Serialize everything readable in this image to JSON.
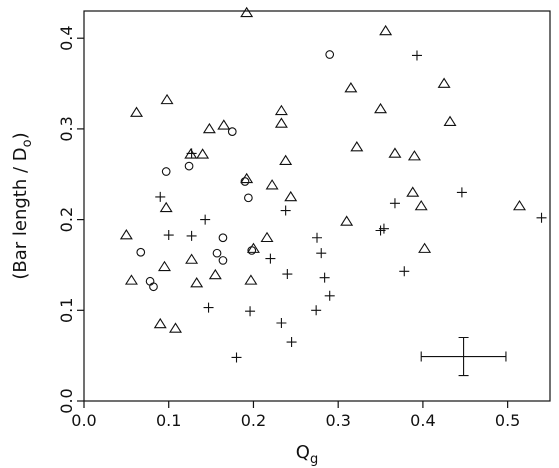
{
  "chart_data": {
    "type": "scatter",
    "xlabel": {
      "main": "Q",
      "sub": "g"
    },
    "ylabel": {
      "prefix": "(Bar length / ",
      "main": "D",
      "sub": "o",
      "suffix": ")"
    },
    "xlim": [
      0.0,
      0.55
    ],
    "ylim": [
      0.0,
      0.43
    ],
    "x_ticks": [
      "0.0",
      "0.1",
      "0.2",
      "0.3",
      "0.4",
      "0.5"
    ],
    "x_tick_values": [
      0.0,
      0.1,
      0.2,
      0.3,
      0.4,
      0.5
    ],
    "y_ticks": [
      "0.0",
      "0.1",
      "0.2",
      "0.3",
      "0.4"
    ],
    "y_tick_values": [
      0.0,
      0.1,
      0.2,
      0.3,
      0.4
    ],
    "grid": false,
    "series": [
      {
        "marker": "triangle",
        "points": [
          [
            0.062,
            0.318
          ],
          [
            0.098,
            0.332
          ],
          [
            0.192,
            0.428
          ],
          [
            0.356,
            0.408
          ],
          [
            0.148,
            0.3
          ],
          [
            0.165,
            0.304
          ],
          [
            0.233,
            0.32
          ],
          [
            0.233,
            0.306
          ],
          [
            0.315,
            0.345
          ],
          [
            0.35,
            0.322
          ],
          [
            0.425,
            0.35
          ],
          [
            0.432,
            0.308
          ],
          [
            0.126,
            0.272
          ],
          [
            0.14,
            0.272
          ],
          [
            0.238,
            0.265
          ],
          [
            0.322,
            0.28
          ],
          [
            0.367,
            0.273
          ],
          [
            0.39,
            0.27
          ],
          [
            0.192,
            0.245
          ],
          [
            0.222,
            0.238
          ],
          [
            0.244,
            0.225
          ],
          [
            0.388,
            0.23
          ],
          [
            0.398,
            0.215
          ],
          [
            0.514,
            0.215
          ],
          [
            0.097,
            0.213
          ],
          [
            0.31,
            0.198
          ],
          [
            0.05,
            0.183
          ],
          [
            0.216,
            0.18
          ],
          [
            0.2,
            0.168
          ],
          [
            0.402,
            0.168
          ],
          [
            0.056,
            0.133
          ],
          [
            0.095,
            0.148
          ],
          [
            0.127,
            0.156
          ],
          [
            0.155,
            0.139
          ],
          [
            0.133,
            0.13
          ],
          [
            0.197,
            0.133
          ],
          [
            0.09,
            0.085
          ],
          [
            0.108,
            0.08
          ]
        ]
      },
      {
        "marker": "circle",
        "points": [
          [
            0.29,
            0.382
          ],
          [
            0.175,
            0.297
          ],
          [
            0.124,
            0.259
          ],
          [
            0.097,
            0.253
          ],
          [
            0.19,
            0.242
          ],
          [
            0.194,
            0.224
          ],
          [
            0.164,
            0.18
          ],
          [
            0.067,
            0.164
          ],
          [
            0.157,
            0.163
          ],
          [
            0.164,
            0.155
          ],
          [
            0.198,
            0.166
          ],
          [
            0.078,
            0.132
          ],
          [
            0.082,
            0.126
          ]
        ]
      },
      {
        "marker": "plus",
        "points": [
          [
            0.393,
            0.381
          ],
          [
            0.127,
            0.273
          ],
          [
            0.09,
            0.225
          ],
          [
            0.238,
            0.21
          ],
          [
            0.367,
            0.218
          ],
          [
            0.446,
            0.23
          ],
          [
            0.54,
            0.202
          ],
          [
            0.143,
            0.2
          ],
          [
            0.1,
            0.183
          ],
          [
            0.127,
            0.182
          ],
          [
            0.275,
            0.18
          ],
          [
            0.35,
            0.188
          ],
          [
            0.354,
            0.19
          ],
          [
            0.28,
            0.163
          ],
          [
            0.22,
            0.157
          ],
          [
            0.24,
            0.14
          ],
          [
            0.284,
            0.136
          ],
          [
            0.29,
            0.116
          ],
          [
            0.378,
            0.143
          ],
          [
            0.147,
            0.103
          ],
          [
            0.196,
            0.099
          ],
          [
            0.233,
            0.086
          ],
          [
            0.274,
            0.1
          ],
          [
            0.245,
            0.065
          ],
          [
            0.18,
            0.048
          ]
        ]
      }
    ],
    "error_bar_annotation": {
      "x": 0.448,
      "y": 0.049,
      "x_err": 0.05,
      "y_err": 0.021
    }
  }
}
